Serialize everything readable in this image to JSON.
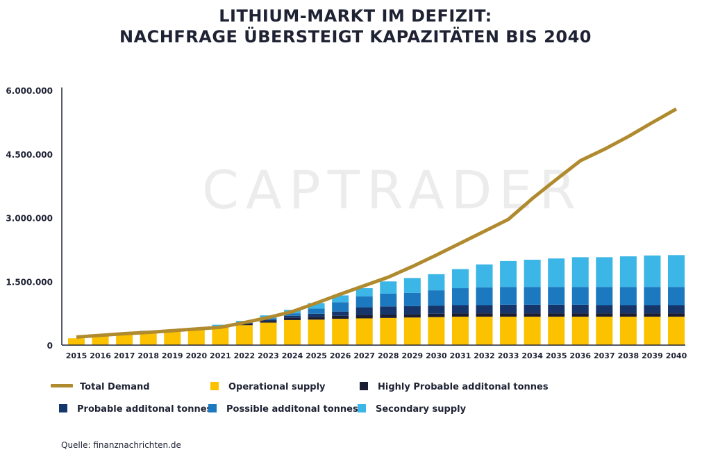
{
  "title": {
    "line1": "LITHIUM-MARKT IM DEFIZIT:",
    "line2": "NACHFRAGE ÜBERSTEIGT KAPAZITÄTEN BIS 2040"
  },
  "watermark": "CAPTRADER",
  "source": "Quelle: finanznachrichten.de",
  "colors": {
    "demand": "#b08a2e",
    "operational": "#fcc200",
    "highly_probable": "#1b1d33",
    "probable": "#15356b",
    "possible": "#1c78bf",
    "secondary": "#3bb6e6",
    "axis": "#1e2233",
    "watermark": "#ececec"
  },
  "chart_data": {
    "type": "bar",
    "stacked": true,
    "categories": [
      "2015",
      "2016",
      "2017",
      "2018",
      "2019",
      "2020",
      "2021",
      "2022",
      "2023",
      "2024",
      "2025",
      "2026",
      "2027",
      "2028",
      "2029",
      "2030",
      "2031",
      "2032",
      "2033",
      "2034",
      "2035",
      "2036",
      "2037",
      "2038",
      "2039",
      "2040"
    ],
    "ylim": [
      0,
      6000000
    ],
    "yticks": [
      0,
      1500000,
      3000000,
      4500000,
      6000000
    ],
    "ytick_labels": [
      "0",
      "1.500.000",
      "3.000.000",
      "4.500.000",
      "6.000.000"
    ],
    "legend_position": "bottom",
    "series": [
      {
        "name": "Operational supply",
        "key": "operational",
        "values": [
          160000,
          210000,
          270000,
          320000,
          330000,
          360000,
          420000,
          470000,
          530000,
          590000,
          600000,
          620000,
          630000,
          640000,
          650000,
          660000,
          670000,
          670000,
          670000,
          670000,
          670000,
          670000,
          670000,
          670000,
          670000,
          670000
        ]
      },
      {
        "name": "Highly Probable additonal tonnes",
        "key": "highly_probable",
        "values": [
          0,
          0,
          0,
          10000,
          0,
          0,
          20000,
          30000,
          40000,
          50000,
          60000,
          70000,
          80000,
          80000,
          80000,
          80000,
          80000,
          80000,
          80000,
          80000,
          80000,
          80000,
          80000,
          80000,
          80000,
          80000
        ]
      },
      {
        "name": "Probable additonal tonnes",
        "key": "probable",
        "values": [
          0,
          0,
          0,
          0,
          0,
          0,
          0,
          20000,
          30000,
          50000,
          80000,
          100000,
          180000,
          190000,
          190000,
          190000,
          190000,
          190000,
          200000,
          200000,
          200000,
          200000,
          190000,
          190000,
          190000,
          190000
        ]
      },
      {
        "name": "Possible additonal tonnes",
        "key": "possible",
        "values": [
          0,
          0,
          0,
          0,
          0,
          0,
          0,
          10000,
          30000,
          60000,
          120000,
          220000,
          260000,
          300000,
          310000,
          360000,
          400000,
          420000,
          420000,
          420000,
          420000,
          420000,
          430000,
          430000,
          430000,
          430000
        ]
      },
      {
        "name": "Secondary supply",
        "key": "secondary",
        "values": [
          0,
          0,
          0,
          10000,
          10000,
          10000,
          40000,
          40000,
          70000,
          80000,
          130000,
          160000,
          190000,
          290000,
          350000,
          380000,
          450000,
          540000,
          610000,
          640000,
          670000,
          700000,
          700000,
          720000,
          740000,
          750000
        ]
      }
    ],
    "line": {
      "name": "Total Demand",
      "key": "demand",
      "values": [
        190000,
        230000,
        270000,
        300000,
        340000,
        380000,
        420000,
        530000,
        650000,
        790000,
        990000,
        1200000,
        1400000,
        1600000,
        1850000,
        2120000,
        2400000,
        2680000,
        2960000,
        3450000,
        3900000,
        4340000,
        4610000,
        4910000,
        5240000,
        5560000
      ]
    }
  }
}
